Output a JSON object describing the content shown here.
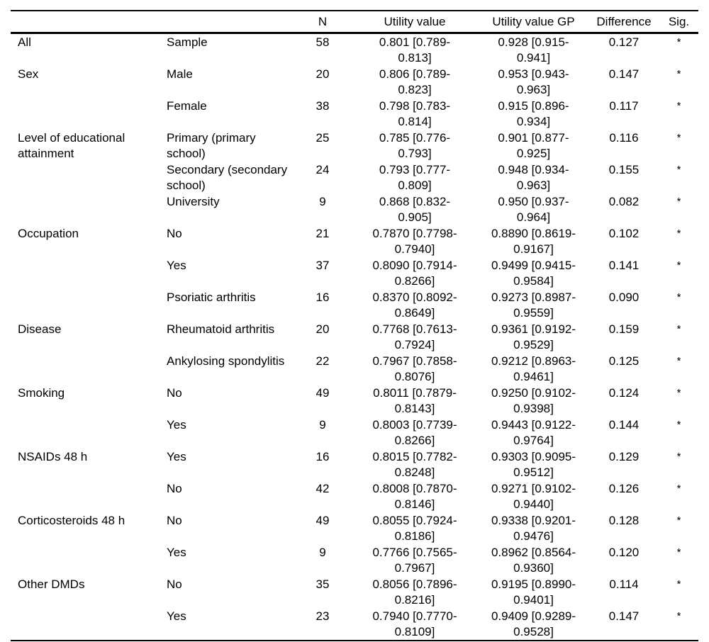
{
  "page": {
    "background": "#ffffff",
    "text_color": "#000000",
    "rule_color": "#000000"
  },
  "table": {
    "columns": [
      {
        "id": "group",
        "label": ""
      },
      {
        "id": "subgroup",
        "label": ""
      },
      {
        "id": "n",
        "label": "N"
      },
      {
        "id": "utility-value",
        "label": "Utility value"
      },
      {
        "id": "utility-value-gp",
        "label": "Utility value GP"
      },
      {
        "id": "difference",
        "label": "Difference"
      },
      {
        "id": "sig",
        "label": "Sig."
      }
    ],
    "rows": [
      {
        "group": "All",
        "subgroup": "Sample",
        "n": "58",
        "utility_value": [
          "0.801 [0.789-",
          "0.813]"
        ],
        "utility_value_gp": [
          "0.928 [0.915-",
          "0.941]"
        ],
        "difference": "0.127",
        "sig": "*"
      },
      {
        "group": "Sex",
        "subgroup": "Male",
        "n": "20",
        "utility_value": [
          "0.806 [0.789-",
          "0.823]"
        ],
        "utility_value_gp": [
          "0.953 [0.943-",
          "0.963]"
        ],
        "difference": "0.147",
        "sig": "*"
      },
      {
        "group": "",
        "subgroup": "Female",
        "n": "38",
        "utility_value": [
          "0.798 [0.783-",
          "0.814]"
        ],
        "utility_value_gp": [
          "0.915 [0.896-",
          "0.934]"
        ],
        "difference": "0.117",
        "sig": "*"
      },
      {
        "group": [
          "Level of educational",
          "attainment"
        ],
        "subgroup": [
          "Primary (primary",
          "school)"
        ],
        "n": "25",
        "utility_value": [
          "0.785 [0.776-",
          "0.793]"
        ],
        "utility_value_gp": [
          "0.901 [0.877-",
          "0.925]"
        ],
        "difference": "0.116",
        "sig": "*"
      },
      {
        "group": "",
        "subgroup": [
          "Secondary (secondary",
          "school)"
        ],
        "n": "24",
        "utility_value": [
          "0.793 [0.777-",
          "0.809]"
        ],
        "utility_value_gp": [
          "0.948 [0.934-",
          "0.963]"
        ],
        "difference": "0.155",
        "sig": "*"
      },
      {
        "group": "",
        "subgroup": "University",
        "n": "9",
        "utility_value": [
          "0.868 [0.832-",
          "0.905]"
        ],
        "utility_value_gp": [
          "0.950 [0.937-",
          "0.964]"
        ],
        "difference": "0.082",
        "sig": "*"
      },
      {
        "group": "Occupation",
        "subgroup": "No",
        "n": "21",
        "utility_value": [
          "0.7870 [0.7798-",
          "0.7940]"
        ],
        "utility_value_gp": [
          "0.8890 [0.8619-",
          "0.9167]"
        ],
        "difference": "0.102",
        "sig": "*"
      },
      {
        "group": "",
        "subgroup": "Yes",
        "n": "37",
        "utility_value": [
          "0.8090 [0.7914-",
          "0.8266]"
        ],
        "utility_value_gp": [
          "0.9499 [0.9415-",
          "0.9584]"
        ],
        "difference": "0.141",
        "sig": "*"
      },
      {
        "group": "",
        "subgroup": "Psoriatic arthritis",
        "n": "16",
        "utility_value": [
          "0.8370 [0.8092-",
          "0.8649]"
        ],
        "utility_value_gp": [
          "0.9273 [0.8987-",
          "0.9559]"
        ],
        "difference": "0.090",
        "sig": "*"
      },
      {
        "group": "Disease",
        "subgroup": "Rheumatoid arthritis",
        "n": "20",
        "utility_value": [
          "0.7768 [0.7613-",
          "0.7924]"
        ],
        "utility_value_gp": [
          "0.9361 [0.9192-",
          "0.9529]"
        ],
        "difference": "0.159",
        "sig": "*"
      },
      {
        "group": "",
        "subgroup": "Ankylosing spondylitis",
        "n": "22",
        "utility_value": [
          "0.7967 [0.7858-",
          "0.8076]"
        ],
        "utility_value_gp": [
          "0.9212 [0.8963-",
          "0.9461]"
        ],
        "difference": "0.125",
        "sig": "*"
      },
      {
        "group": "Smoking",
        "subgroup": "No",
        "n": "49",
        "utility_value": [
          "0.8011 [0.7879-",
          "0.8143]"
        ],
        "utility_value_gp": [
          "0.9250 [0.9102-",
          "0.9398]"
        ],
        "difference": "0.124",
        "sig": "*"
      },
      {
        "group": "",
        "subgroup": "Yes",
        "n": "9",
        "utility_value": [
          "0.8003 [0.7739-",
          "0.8266]"
        ],
        "utility_value_gp": [
          "0.9443 [0.9122-",
          "0.9764]"
        ],
        "difference": "0.144",
        "sig": "*"
      },
      {
        "group": "NSAIDs 48 h",
        "subgroup": "Yes",
        "n": "16",
        "utility_value": [
          "0.8015 [0.7782-",
          "0.8248]"
        ],
        "utility_value_gp": [
          "0.9303 [0.9095-",
          "0.9512]"
        ],
        "difference": "0.129",
        "sig": "*"
      },
      {
        "group": "",
        "subgroup": "No",
        "n": "42",
        "utility_value": [
          "0.8008 [0.7870-",
          "0.8146]"
        ],
        "utility_value_gp": [
          "0.9271 [0.9102-",
          "0.9440]"
        ],
        "difference": "0.126",
        "sig": "*"
      },
      {
        "group": "Corticosteroids 48 h",
        "subgroup": "No",
        "n": "49",
        "utility_value": [
          "0.8055 [0.7924-",
          "0.8186]"
        ],
        "utility_value_gp": [
          "0.9338 [0.9201-",
          "0.9476]"
        ],
        "difference": "0.128",
        "sig": "*"
      },
      {
        "group": "",
        "subgroup": "Yes",
        "n": "9",
        "utility_value": [
          "0.7766 [0.7565-",
          "0.7967]"
        ],
        "utility_value_gp": [
          "0.8962 [0.8564-",
          "0.9360]"
        ],
        "difference": "0.120",
        "sig": "*"
      },
      {
        "group": "Other DMDs",
        "subgroup": "No",
        "n": "35",
        "utility_value": [
          "0.8056 [0.7896-",
          "0.8216]"
        ],
        "utility_value_gp": [
          "0.9195 [0.8990-",
          "0.9401]"
        ],
        "difference": "0.114",
        "sig": "*"
      },
      {
        "group": "",
        "subgroup": "Yes",
        "n": "23",
        "utility_value": [
          "0.7940 [0.7770-",
          "0.8109]"
        ],
        "utility_value_gp": [
          "0.9409 [0.9289-",
          "0.9528]"
        ],
        "difference": "0.147",
        "sig": "*"
      }
    ]
  }
}
